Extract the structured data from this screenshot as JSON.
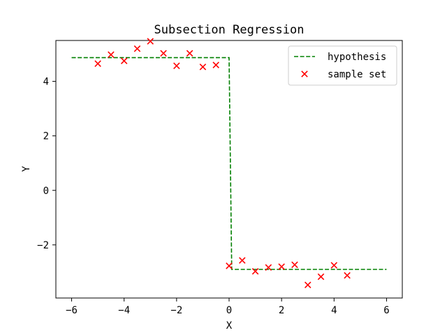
{
  "chart_data": {
    "type": "line+scatter",
    "title": "Subsection Regression",
    "xlabel": "X",
    "ylabel": "Y",
    "xlim": [
      -6.6,
      6.6
    ],
    "ylim": [
      -3.95,
      5.5
    ],
    "xticks": [
      -6,
      -4,
      -2,
      0,
      2,
      4,
      6
    ],
    "xtick_labels": [
      "−6",
      "−4",
      "−2",
      "0",
      "2",
      "4",
      "6"
    ],
    "yticks": [
      -2,
      0,
      2,
      4
    ],
    "ytick_labels": [
      "−2",
      "0",
      "2",
      "4"
    ],
    "grid": false,
    "legend_position": "top-right",
    "series": [
      {
        "name": "hypothesis",
        "kind": "line",
        "style": "dashed",
        "color": "#008000",
        "points": [
          [
            -6,
            4.87
          ],
          [
            0,
            4.87
          ],
          [
            0.1,
            -2.9
          ],
          [
            6,
            -2.9
          ]
        ]
      },
      {
        "name": "sample set",
        "kind": "scatter",
        "marker": "x",
        "color": "#ff0000",
        "x": [
          -5,
          -4.5,
          -4,
          -3.5,
          -3,
          -2.5,
          -2,
          -1.5,
          -1,
          -0.5,
          0,
          0.5,
          1,
          1.5,
          2,
          2.5,
          3,
          3.5,
          4,
          4.5
        ],
        "y": [
          4.65,
          4.98,
          4.75,
          5.2,
          5.47,
          5.03,
          4.57,
          5.03,
          4.53,
          4.6,
          -2.77,
          -2.57,
          -2.97,
          -2.83,
          -2.8,
          -2.73,
          -3.47,
          -3.17,
          -2.75,
          -3.12
        ]
      }
    ]
  }
}
